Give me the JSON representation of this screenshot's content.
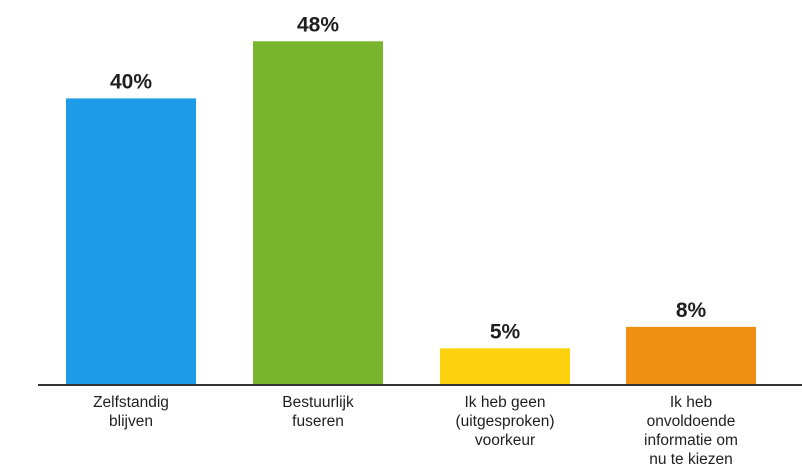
{
  "chart_data": {
    "type": "bar",
    "categories": [
      [
        "Zelfstandig",
        "blijven"
      ],
      [
        "Bestuurlijk",
        "fuseren"
      ],
      [
        "Ik heb geen",
        "(uitgesproken)",
        "voorkeur"
      ],
      [
        "Ik heb",
        "onvoldoende",
        "informatie om",
        "nu te kiezen"
      ]
    ],
    "values": [
      40,
      48,
      5,
      8
    ],
    "value_labels": [
      "40%",
      "48%",
      "5%",
      "8%"
    ],
    "colors": [
      "#1e9be8",
      "#7ab52e",
      "#fcd20f",
      "#ef8f14"
    ],
    "axis_color": "#333333",
    "ylim": [
      0,
      50
    ],
    "grid": false,
    "legend": "none"
  }
}
